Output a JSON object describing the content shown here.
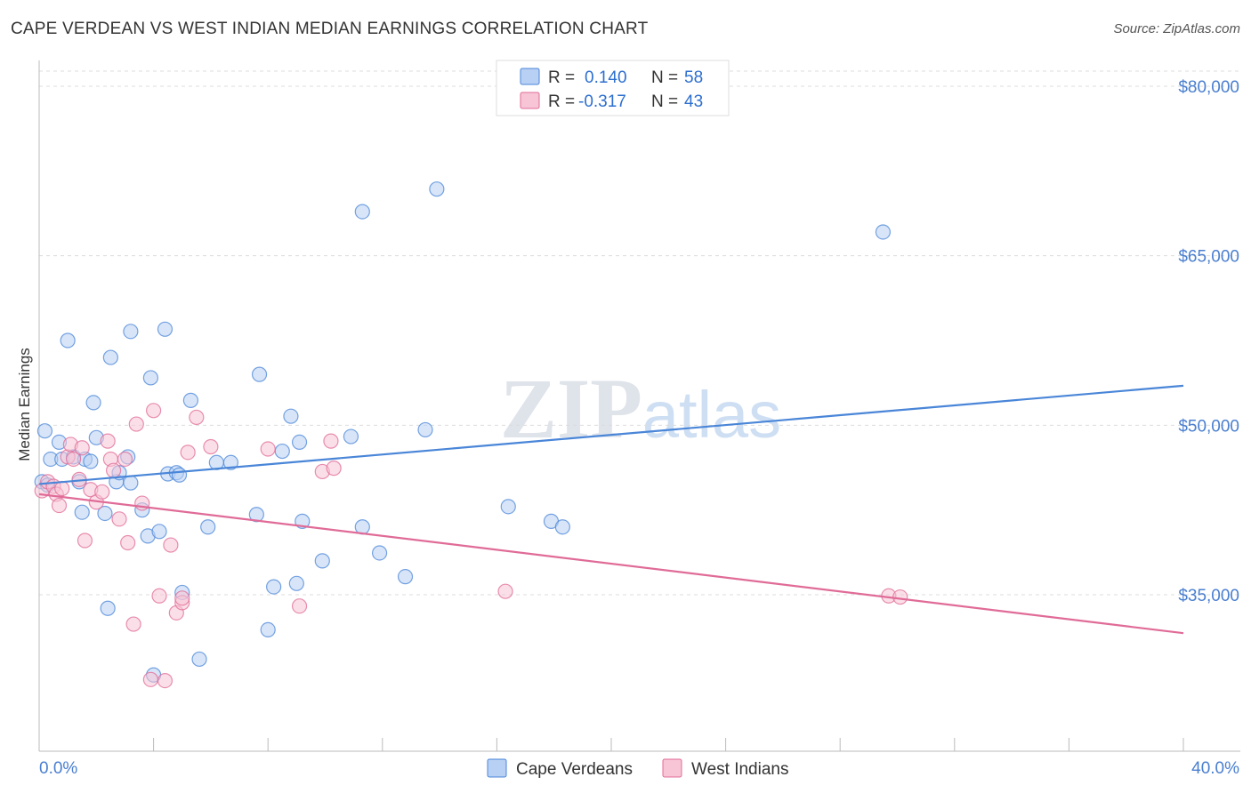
{
  "chart_data": {
    "type": "scatter",
    "title": "CAPE VERDEAN VS WEST INDIAN MEDIAN EARNINGS CORRELATION CHART",
    "source": "Source: ZipAtlas.com",
    "xlabel": "",
    "ylabel": "Median Earnings",
    "xlim": [
      0,
      40
    ],
    "ylim": [
      20000,
      81500
    ],
    "x_tick_labels": [
      "0.0%",
      "40.0%"
    ],
    "y_ticks": [
      35000,
      50000,
      65000,
      80000
    ],
    "y_tick_labels": [
      "$35,000",
      "$50,000",
      "$65,000",
      "$80,000"
    ],
    "watermark": "ZIPatlas",
    "legend": {
      "rows": [
        {
          "r_label": "R =",
          "r_value": "0.140",
          "n_label": "N =",
          "n_value": "58"
        },
        {
          "r_label": "R =",
          "r_value": "-0.317",
          "n_label": "N =",
          "n_value": "43"
        }
      ]
    },
    "series": [
      {
        "name": "Cape Verdeans",
        "color": "#4a86d8",
        "fill": "#b8d0f3",
        "trend": {
          "x": [
            0,
            40
          ],
          "y": [
            44800,
            53500
          ]
        },
        "points": [
          {
            "x": 0.1,
            "y": 45000
          },
          {
            "x": 0.2,
            "y": 49500
          },
          {
            "x": 0.4,
            "y": 47000
          },
          {
            "x": 0.7,
            "y": 48500
          },
          {
            "x": 0.8,
            "y": 47000
          },
          {
            "x": 1.0,
            "y": 57500
          },
          {
            "x": 1.2,
            "y": 47200
          },
          {
            "x": 1.4,
            "y": 45000
          },
          {
            "x": 1.5,
            "y": 42300
          },
          {
            "x": 1.6,
            "y": 47000
          },
          {
            "x": 1.8,
            "y": 46800
          },
          {
            "x": 1.9,
            "y": 52000
          },
          {
            "x": 2.0,
            "y": 48900
          },
          {
            "x": 2.3,
            "y": 42200
          },
          {
            "x": 2.4,
            "y": 33800
          },
          {
            "x": 2.5,
            "y": 56000
          },
          {
            "x": 2.7,
            "y": 45000
          },
          {
            "x": 2.8,
            "y": 45800
          },
          {
            "x": 3.1,
            "y": 47200
          },
          {
            "x": 3.2,
            "y": 44900
          },
          {
            "x": 3.2,
            "y": 58300
          },
          {
            "x": 3.6,
            "y": 42500
          },
          {
            "x": 3.8,
            "y": 40200
          },
          {
            "x": 3.9,
            "y": 54200
          },
          {
            "x": 4.0,
            "y": 27900
          },
          {
            "x": 4.2,
            "y": 40600
          },
          {
            "x": 4.4,
            "y": 58500
          },
          {
            "x": 4.5,
            "y": 45700
          },
          {
            "x": 4.8,
            "y": 45800
          },
          {
            "x": 4.9,
            "y": 45600
          },
          {
            "x": 5.0,
            "y": 35200
          },
          {
            "x": 5.3,
            "y": 52200
          },
          {
            "x": 5.6,
            "y": 29300
          },
          {
            "x": 5.9,
            "y": 41000
          },
          {
            "x": 6.2,
            "y": 46700
          },
          {
            "x": 6.7,
            "y": 46700
          },
          {
            "x": 7.6,
            "y": 42100
          },
          {
            "x": 7.7,
            "y": 54500
          },
          {
            "x": 8.0,
            "y": 31900
          },
          {
            "x": 8.2,
            "y": 35700
          },
          {
            "x": 8.5,
            "y": 47700
          },
          {
            "x": 8.8,
            "y": 50800
          },
          {
            "x": 9.0,
            "y": 36000
          },
          {
            "x": 9.1,
            "y": 48500
          },
          {
            "x": 9.2,
            "y": 41500
          },
          {
            "x": 9.9,
            "y": 38000
          },
          {
            "x": 10.9,
            "y": 49000
          },
          {
            "x": 11.3,
            "y": 41000
          },
          {
            "x": 11.3,
            "y": 68900
          },
          {
            "x": 11.9,
            "y": 38700
          },
          {
            "x": 12.8,
            "y": 36600
          },
          {
            "x": 13.5,
            "y": 49600
          },
          {
            "x": 13.9,
            "y": 70900
          },
          {
            "x": 16.4,
            "y": 42800
          },
          {
            "x": 17.9,
            "y": 41500
          },
          {
            "x": 18.3,
            "y": 41000
          },
          {
            "x": 29.5,
            "y": 67100
          },
          {
            "x": 0.3,
            "y": 44700
          }
        ]
      },
      {
        "name": "West Indians",
        "color": "#e06b97",
        "fill": "#f7c5d6",
        "trend": {
          "x": [
            0,
            40
          ],
          "y": [
            43900,
            31600
          ]
        },
        "points": [
          {
            "x": 0.1,
            "y": 44200
          },
          {
            "x": 0.3,
            "y": 45000
          },
          {
            "x": 0.5,
            "y": 44600
          },
          {
            "x": 0.6,
            "y": 43900
          },
          {
            "x": 0.7,
            "y": 42900
          },
          {
            "x": 0.8,
            "y": 44400
          },
          {
            "x": 1.0,
            "y": 47200
          },
          {
            "x": 1.1,
            "y": 48300
          },
          {
            "x": 1.2,
            "y": 47000
          },
          {
            "x": 1.4,
            "y": 45200
          },
          {
            "x": 1.5,
            "y": 48000
          },
          {
            "x": 1.6,
            "y": 39800
          },
          {
            "x": 1.8,
            "y": 44300
          },
          {
            "x": 2.0,
            "y": 43200
          },
          {
            "x": 2.2,
            "y": 44100
          },
          {
            "x": 2.4,
            "y": 48600
          },
          {
            "x": 2.5,
            "y": 47000
          },
          {
            "x": 2.6,
            "y": 46000
          },
          {
            "x": 2.8,
            "y": 41700
          },
          {
            "x": 3.0,
            "y": 47000
          },
          {
            "x": 3.1,
            "y": 39600
          },
          {
            "x": 3.3,
            "y": 32400
          },
          {
            "x": 3.4,
            "y": 50100
          },
          {
            "x": 3.6,
            "y": 43100
          },
          {
            "x": 3.9,
            "y": 27500
          },
          {
            "x": 4.0,
            "y": 51300
          },
          {
            "x": 4.2,
            "y": 34900
          },
          {
            "x": 4.4,
            "y": 27400
          },
          {
            "x": 4.6,
            "y": 39400
          },
          {
            "x": 4.8,
            "y": 33400
          },
          {
            "x": 5.0,
            "y": 34300
          },
          {
            "x": 5.2,
            "y": 47600
          },
          {
            "x": 5.5,
            "y": 50700
          },
          {
            "x": 6.0,
            "y": 48100
          },
          {
            "x": 8.0,
            "y": 47900
          },
          {
            "x": 9.1,
            "y": 34000
          },
          {
            "x": 9.9,
            "y": 45900
          },
          {
            "x": 10.3,
            "y": 46200
          },
          {
            "x": 10.2,
            "y": 48600
          },
          {
            "x": 16.3,
            "y": 35300
          },
          {
            "x": 29.7,
            "y": 34900
          },
          {
            "x": 30.1,
            "y": 34800
          },
          {
            "x": 5.0,
            "y": 34700
          }
        ]
      }
    ]
  }
}
